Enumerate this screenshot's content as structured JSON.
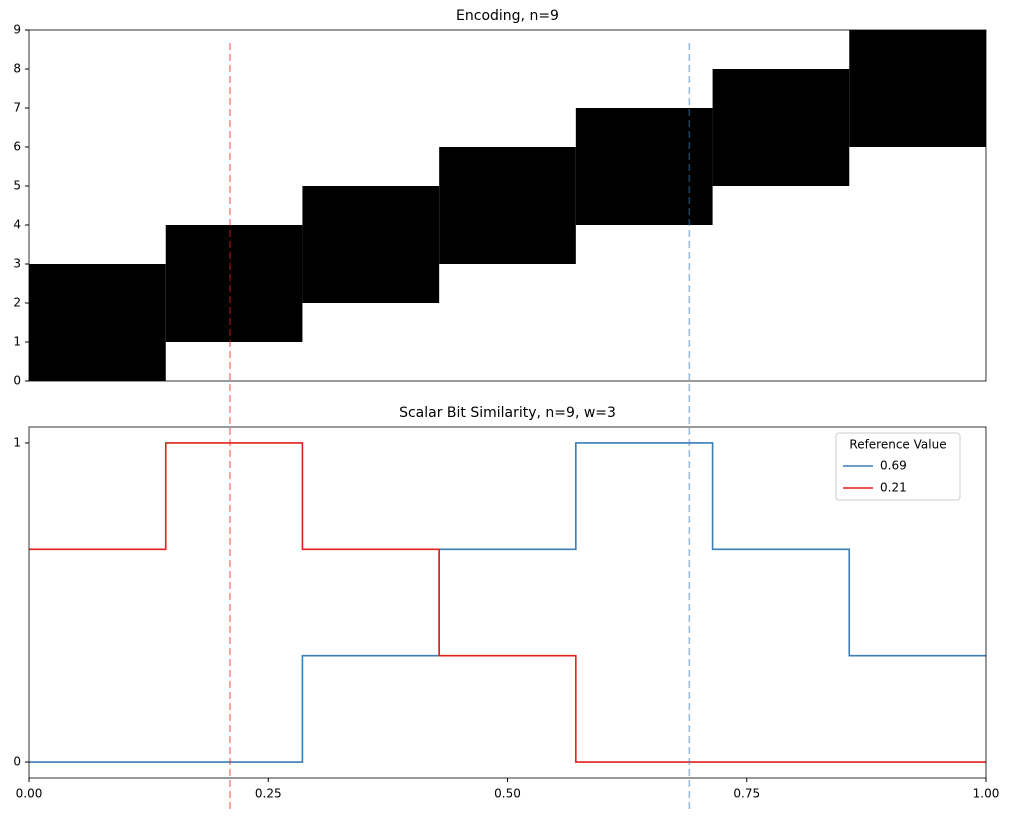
{
  "chart_data": [
    {
      "type": "range-bar",
      "title": "Encoding, n=9",
      "bins": [
        0,
        0.1429,
        0.2857,
        0.4286,
        0.5714,
        0.7143,
        0.8571,
        1
      ],
      "low": [
        0,
        1,
        2,
        3,
        4,
        5,
        6
      ],
      "high": [
        3,
        4,
        5,
        6,
        7,
        8,
        9
      ],
      "color": "#000000",
      "xlim": [
        0,
        1
      ],
      "ylim": [
        0,
        9
      ],
      "yticks": [
        0,
        1,
        2,
        3,
        4,
        5,
        6,
        7,
        8,
        9
      ]
    },
    {
      "type": "line",
      "title": "Scalar Bit Similarity, n=9, w=3",
      "x": [
        0,
        0.1429,
        0.1429,
        0.2857,
        0.2857,
        0.4286,
        0.4286,
        0.5714,
        0.5714,
        0.7143,
        0.7143,
        0.8571,
        0.8571,
        1
      ],
      "series": [
        {
          "name": "0.69",
          "reference": 0.69,
          "color": "#3a7db8",
          "values": [
            0,
            0,
            0,
            0,
            0.3333,
            0.3333,
            0.6667,
            0.6667,
            1,
            1,
            0.6667,
            0.6667,
            0.3333,
            0.3333
          ]
        },
        {
          "name": "0.21",
          "reference": 0.21,
          "color": "#e3211c",
          "values": [
            0.6667,
            0.6667,
            1,
            1,
            0.6667,
            0.6667,
            0.3333,
            0.3333,
            0,
            0,
            0,
            0,
            0,
            0
          ]
        }
      ],
      "legend_title": "Reference Value",
      "legend": "upper right",
      "xlim": [
        0,
        1
      ],
      "ylim": [
        -0.05,
        1.05
      ],
      "xticks": [
        {
          "value": 0,
          "label": "0.00"
        },
        {
          "value": 0.25,
          "label": "0.25"
        },
        {
          "value": 0.5,
          "label": "0.50"
        },
        {
          "value": 0.75,
          "label": "0.75"
        },
        {
          "value": 1,
          "label": "1.00"
        }
      ],
      "yticks": [
        0,
        1
      ]
    }
  ]
}
